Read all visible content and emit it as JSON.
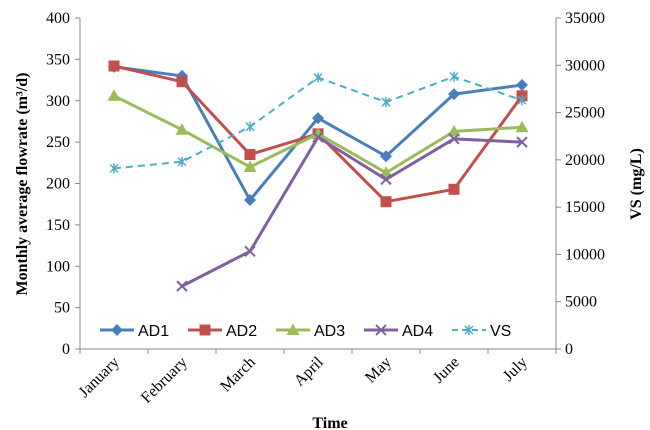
{
  "chart_data": {
    "type": "line",
    "categories": [
      "January",
      "February",
      "March",
      "April",
      "May",
      "June",
      "July"
    ],
    "xlabel": "Time",
    "ylabel": "Monthly average flowrate (m³/d)",
    "y2label": "VS (mg/L)",
    "ylim": [
      0,
      400
    ],
    "y2lim": [
      0,
      35000
    ],
    "yticks": [
      "0",
      "50",
      "100",
      "150",
      "200",
      "250",
      "300",
      "350",
      "400"
    ],
    "y2ticks": [
      "0",
      "5000",
      "10000",
      "15000",
      "20000",
      "25000",
      "30000",
      "35000"
    ],
    "grid": false,
    "legend_position": "bottom-inside",
    "series": [
      {
        "name": "AD1",
        "axis": "left",
        "color": "#4a7ebb",
        "marker": "diamond",
        "dash": false,
        "values": [
          341,
          330,
          180,
          279,
          233,
          308,
          319
        ]
      },
      {
        "name": "AD2",
        "axis": "left",
        "color": "#c0504d",
        "marker": "square",
        "dash": false,
        "values": [
          342,
          323,
          235,
          260,
          178,
          193,
          306
        ]
      },
      {
        "name": "AD3",
        "axis": "left",
        "color": "#9bbb59",
        "marker": "triangle",
        "dash": false,
        "values": [
          306,
          265,
          220,
          260,
          213,
          263,
          268
        ]
      },
      {
        "name": "AD4",
        "axis": "left",
        "color": "#7f60a0",
        "marker": "x",
        "dash": false,
        "values": [
          null,
          76,
          118,
          256,
          205,
          254,
          250
        ]
      },
      {
        "name": "VS",
        "axis": "right",
        "color": "#4bacc6",
        "marker": "asterisk",
        "dash": true,
        "values": [
          19100,
          19800,
          23500,
          28700,
          26100,
          28800,
          26300
        ]
      }
    ]
  }
}
